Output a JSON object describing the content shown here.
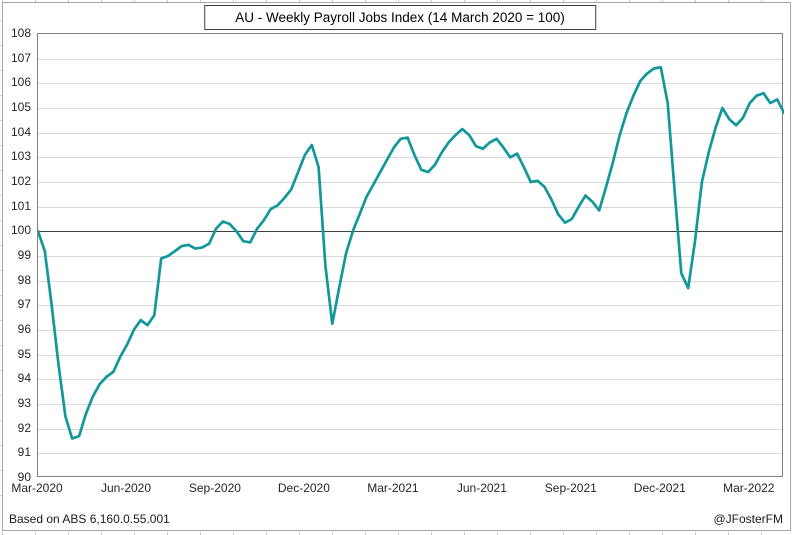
{
  "window": {
    "footer_left": "Based on ABS 6,160.0.55.001",
    "footer_right": "@JFosterFM"
  },
  "colors": {
    "line": "#12979b",
    "gridline": "#d9d9d9",
    "reference_line": "#404040",
    "plot_border": "#808080",
    "outer_border": "#a6a6a6"
  },
  "chart_data": {
    "type": "line",
    "title": "AU - Weekly Payroll Jobs Index (14 March 2020 = 100)",
    "series_name": "Weekly Payroll Jobs Index",
    "x_start_date": "2020-03-14",
    "x_interval": "weekly",
    "x_tick_labels": [
      "Mar-2020",
      "Jun-2020",
      "Sep-2020",
      "Dec-2020",
      "Mar-2021",
      "Jun-2021",
      "Sep-2021",
      "Dec-2021",
      "Mar-2022"
    ],
    "x_tick_week_indices": [
      0,
      13,
      26,
      39,
      52,
      65,
      78,
      91,
      104
    ],
    "ylim": [
      90,
      108
    ],
    "y_tick_step": 1,
    "reference_line_y": 100,
    "grid": "horizontal",
    "legend": "none",
    "line_color": "#12979b",
    "values": [
      100.0,
      99.2,
      97.0,
      94.6,
      92.5,
      91.6,
      91.7,
      92.6,
      93.3,
      93.8,
      94.1,
      94.3,
      94.9,
      95.4,
      96.0,
      96.4,
      96.2,
      96.6,
      98.9,
      99.0,
      99.2,
      99.4,
      99.45,
      99.3,
      99.35,
      99.5,
      100.1,
      100.4,
      100.3,
      100.0,
      99.6,
      99.55,
      100.1,
      100.45,
      100.9,
      101.05,
      101.35,
      101.7,
      102.4,
      103.1,
      103.5,
      102.6,
      98.6,
      96.25,
      97.7,
      99.1,
      100.0,
      100.7,
      101.4,
      101.9,
      102.4,
      102.9,
      103.4,
      103.75,
      103.8,
      103.1,
      102.5,
      102.4,
      102.7,
      103.2,
      103.6,
      103.9,
      104.15,
      103.9,
      103.45,
      103.35,
      103.6,
      103.75,
      103.4,
      103.0,
      103.15,
      102.6,
      102.0,
      102.05,
      101.8,
      101.3,
      100.7,
      100.35,
      100.5,
      101.0,
      101.45,
      101.2,
      100.85,
      101.8,
      102.8,
      103.9,
      104.8,
      105.5,
      106.1,
      106.4,
      106.6,
      106.65,
      105.2,
      101.7,
      98.3,
      97.7,
      99.6,
      102.0,
      103.2,
      104.2,
      105.0,
      104.55,
      104.3,
      104.6,
      105.2,
      105.5,
      105.6,
      105.2,
      105.35,
      104.8
    ]
  }
}
